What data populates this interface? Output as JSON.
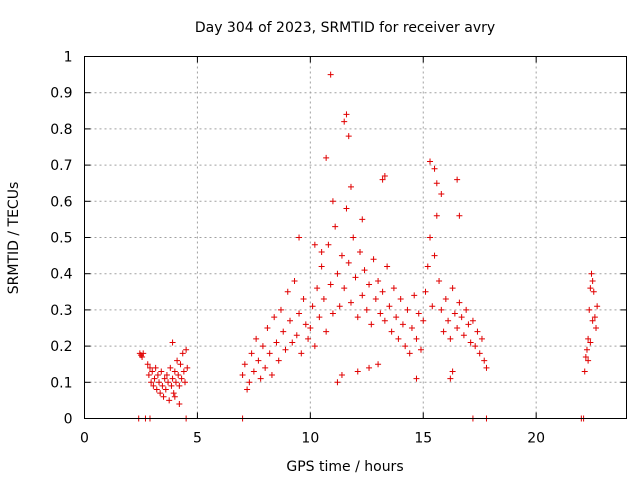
{
  "chart_data": {
    "type": "scatter",
    "title": "Day 304 of 2023, SRMTID for receiver avry",
    "xlabel": "GPS time / hours",
    "ylabel": "SRMTID / TECUs",
    "xlim": [
      0,
      24
    ],
    "ylim": [
      0,
      1
    ],
    "xticks": [
      0,
      5,
      10,
      15,
      20
    ],
    "xtick_labels": [
      "0",
      "5",
      "10",
      "15",
      "20"
    ],
    "yticks": [
      0,
      0.1,
      0.2,
      0.3,
      0.4,
      0.5,
      0.6,
      0.7,
      0.8,
      0.9,
      1
    ],
    "ytick_labels": [
      "0",
      "0.1",
      "0.2",
      "0.3",
      "0.4",
      "0.5",
      "0.6",
      "0.7",
      "0.8",
      "0.9",
      "1"
    ],
    "grid": true,
    "marker": "+",
    "color": "#e00000",
    "series": [
      {
        "name": "SRMTID",
        "x": [
          2.45,
          2.5,
          2.55,
          2.6,
          2.8,
          2.85,
          2.9,
          2.95,
          3.0,
          3.05,
          3.1,
          3.15,
          3.2,
          3.25,
          3.3,
          3.35,
          3.4,
          3.45,
          3.5,
          3.55,
          3.6,
          3.65,
          3.7,
          3.75,
          3.8,
          3.85,
          3.9,
          3.95,
          4.0,
          4.05,
          4.1,
          4.15,
          4.2,
          4.25,
          4.3,
          4.35,
          4.4,
          4.45,
          4.5,
          4.55,
          3.9,
          4.0,
          4.2,
          7.0,
          7.1,
          7.2,
          7.3,
          7.4,
          7.5,
          7.6,
          7.7,
          7.8,
          7.9,
          8.0,
          8.1,
          8.2,
          8.3,
          8.4,
          8.5,
          8.6,
          8.7,
          8.8,
          8.9,
          9.0,
          9.1,
          9.2,
          9.3,
          9.4,
          9.5,
          9.6,
          9.7,
          9.8,
          9.9,
          10.0,
          10.1,
          10.2,
          10.3,
          10.4,
          10.5,
          10.6,
          10.7,
          10.8,
          10.9,
          11.0,
          11.1,
          11.2,
          11.3,
          11.4,
          11.5,
          11.6,
          11.7,
          11.8,
          11.9,
          12.0,
          12.1,
          12.2,
          12.3,
          12.4,
          12.5,
          12.6,
          12.7,
          12.8,
          12.9,
          13.0,
          13.1,
          13.2,
          13.3,
          13.4,
          13.5,
          13.6,
          13.7,
          13.8,
          13.9,
          14.0,
          14.1,
          14.2,
          14.3,
          14.4,
          14.5,
          14.6,
          14.7,
          14.8,
          14.9,
          15.0,
          15.1,
          15.2,
          15.3,
          15.4,
          15.5,
          15.6,
          15.7,
          15.8,
          15.9,
          16.0,
          16.1,
          16.2,
          16.3,
          16.4,
          16.5,
          16.6,
          16.7,
          16.8,
          16.9,
          17.0,
          17.1,
          17.2,
          17.3,
          17.4,
          17.5,
          17.6,
          17.7,
          17.8,
          10.7,
          10.9,
          11.0,
          11.5,
          11.6,
          11.7,
          11.8,
          12.3,
          13.2,
          13.3,
          15.3,
          15.5,
          15.6,
          15.8,
          16.5,
          16.6,
          16.2,
          16.3,
          11.2,
          11.4,
          12.1,
          12.6,
          13.0,
          14.7,
          9.5,
          10.2,
          10.5,
          22.15,
          22.2,
          22.25,
          22.3,
          22.35,
          22.4,
          22.45,
          22.5,
          22.55,
          22.6,
          22.65,
          22.7,
          22.3,
          22.4,
          22.5,
          2.4,
          2.7,
          2.9,
          4.5,
          7.0,
          17.2,
          17.8,
          22.0,
          22.1
        ],
        "y": [
          0.18,
          0.175,
          0.17,
          0.18,
          0.15,
          0.12,
          0.14,
          0.1,
          0.13,
          0.09,
          0.11,
          0.14,
          0.08,
          0.12,
          0.1,
          0.07,
          0.13,
          0.09,
          0.06,
          0.11,
          0.08,
          0.12,
          0.1,
          0.05,
          0.14,
          0.09,
          0.11,
          0.07,
          0.13,
          0.1,
          0.16,
          0.12,
          0.09,
          0.15,
          0.11,
          0.18,
          0.13,
          0.1,
          0.19,
          0.14,
          0.21,
          0.06,
          0.04,
          0.12,
          0.15,
          0.08,
          0.1,
          0.18,
          0.13,
          0.22,
          0.16,
          0.11,
          0.2,
          0.14,
          0.25,
          0.18,
          0.12,
          0.28,
          0.21,
          0.16,
          0.3,
          0.24,
          0.19,
          0.35,
          0.27,
          0.21,
          0.38,
          0.23,
          0.29,
          0.18,
          0.33,
          0.26,
          0.22,
          0.25,
          0.31,
          0.2,
          0.36,
          0.28,
          0.42,
          0.33,
          0.24,
          0.48,
          0.37,
          0.29,
          0.53,
          0.4,
          0.31,
          0.45,
          0.36,
          0.58,
          0.43,
          0.32,
          0.5,
          0.39,
          0.28,
          0.46,
          0.34,
          0.41,
          0.3,
          0.37,
          0.26,
          0.44,
          0.33,
          0.38,
          0.29,
          0.35,
          0.27,
          0.42,
          0.31,
          0.24,
          0.36,
          0.28,
          0.22,
          0.33,
          0.26,
          0.2,
          0.3,
          0.18,
          0.25,
          0.34,
          0.22,
          0.29,
          0.19,
          0.27,
          0.35,
          0.42,
          0.5,
          0.31,
          0.45,
          0.56,
          0.38,
          0.3,
          0.24,
          0.33,
          0.27,
          0.22,
          0.36,
          0.29,
          0.25,
          0.32,
          0.28,
          0.23,
          0.3,
          0.26,
          0.21,
          0.27,
          0.2,
          0.24,
          0.18,
          0.22,
          0.16,
          0.14,
          0.72,
          0.95,
          0.6,
          0.82,
          0.84,
          0.78,
          0.64,
          0.55,
          0.66,
          0.67,
          0.71,
          0.69,
          0.65,
          0.62,
          0.66,
          0.56,
          0.11,
          0.13,
          0.1,
          0.12,
          0.13,
          0.14,
          0.15,
          0.11,
          0.5,
          0.48,
          0.46,
          0.13,
          0.17,
          0.19,
          0.22,
          0.3,
          0.36,
          0.4,
          0.38,
          0.35,
          0.28,
          0.25,
          0.31,
          0.16,
          0.21,
          0.27,
          0,
          0,
          0,
          0,
          0,
          0,
          0,
          0,
          0
        ]
      }
    ]
  }
}
